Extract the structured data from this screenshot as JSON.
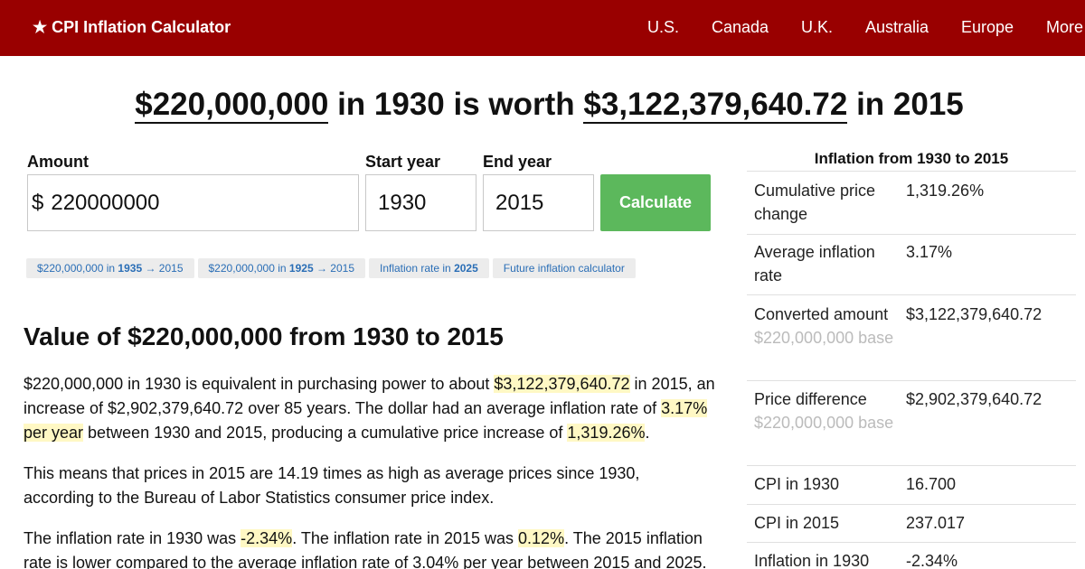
{
  "header": {
    "brand": "★ CPI Inflation Calculator",
    "nav": [
      "U.S.",
      "Canada",
      "U.K.",
      "Australia",
      "Europe",
      "More"
    ]
  },
  "headline": {
    "amount": "$220,000,000",
    "mid": " in 1930 is worth ",
    "result": "$3,122,379,640.72",
    "end": " in 2015"
  },
  "form": {
    "amount_label": "Amount",
    "currency": "$",
    "amount_value": "220000000",
    "start_label": "Start year",
    "start_value": "1930",
    "end_label": "End year",
    "end_value": "2015",
    "button": "Calculate"
  },
  "chips": [
    {
      "pre": "$220,000,000 in ",
      "bold": "1935",
      "post": " → 2015"
    },
    {
      "pre": "$220,000,000 in ",
      "bold": "1925",
      "post": " → 2015"
    },
    {
      "pre": "Inflation rate in ",
      "bold": "2025",
      "post": ""
    },
    {
      "pre": "Future inflation calculator",
      "bold": "",
      "post": ""
    }
  ],
  "article": {
    "heading": "Value of $220,000,000 from 1930 to 2015",
    "p1": {
      "a": "$220,000,000 in 1930 is equivalent in purchasing power to about ",
      "b": "$3,122,379,640.72",
      "c": " in 2015, an increase of $2,902,379,640.72 over 85 years. The dollar had an average inflation rate of ",
      "d": "3.17% per year",
      "e": " between 1930 and 2015, producing a cumulative price increase of ",
      "f": "1,319.26%",
      "g": "."
    },
    "p2": "This means that prices in 2015 are 14.19 times as high as average prices since 1930, according to the Bureau of Labor Statistics consumer price index.",
    "p3": {
      "a": "The inflation rate in 1930 was ",
      "b": "-2.34%",
      "c": ". The inflation rate in 2015 was ",
      "d": "0.12%",
      "e": ". The 2015 inflation rate is lower compared to the average inflation rate of 3.04% per year between 2015 and 2025."
    }
  },
  "summary": {
    "title": "Inflation from 1930 to 2015",
    "rows": [
      {
        "key": "Cumulative price change",
        "value": "1,319.26%",
        "sub": ""
      },
      {
        "key": "Average inflation rate",
        "value": "3.17%",
        "sub": ""
      },
      {
        "key": "Converted amount",
        "value": "$3,122,379,640.72",
        "sub": "$220,000,000 base"
      },
      {
        "key": "Price difference",
        "value": "$2,902,379,640.72",
        "sub": "$220,000,000 base"
      },
      {
        "key": "CPI in 1930",
        "value": "16.700",
        "sub": ""
      },
      {
        "key": "CPI in 2015",
        "value": "237.017",
        "sub": ""
      },
      {
        "key": "Inflation in 1930",
        "value": "-2.34%",
        "sub": ""
      }
    ]
  }
}
